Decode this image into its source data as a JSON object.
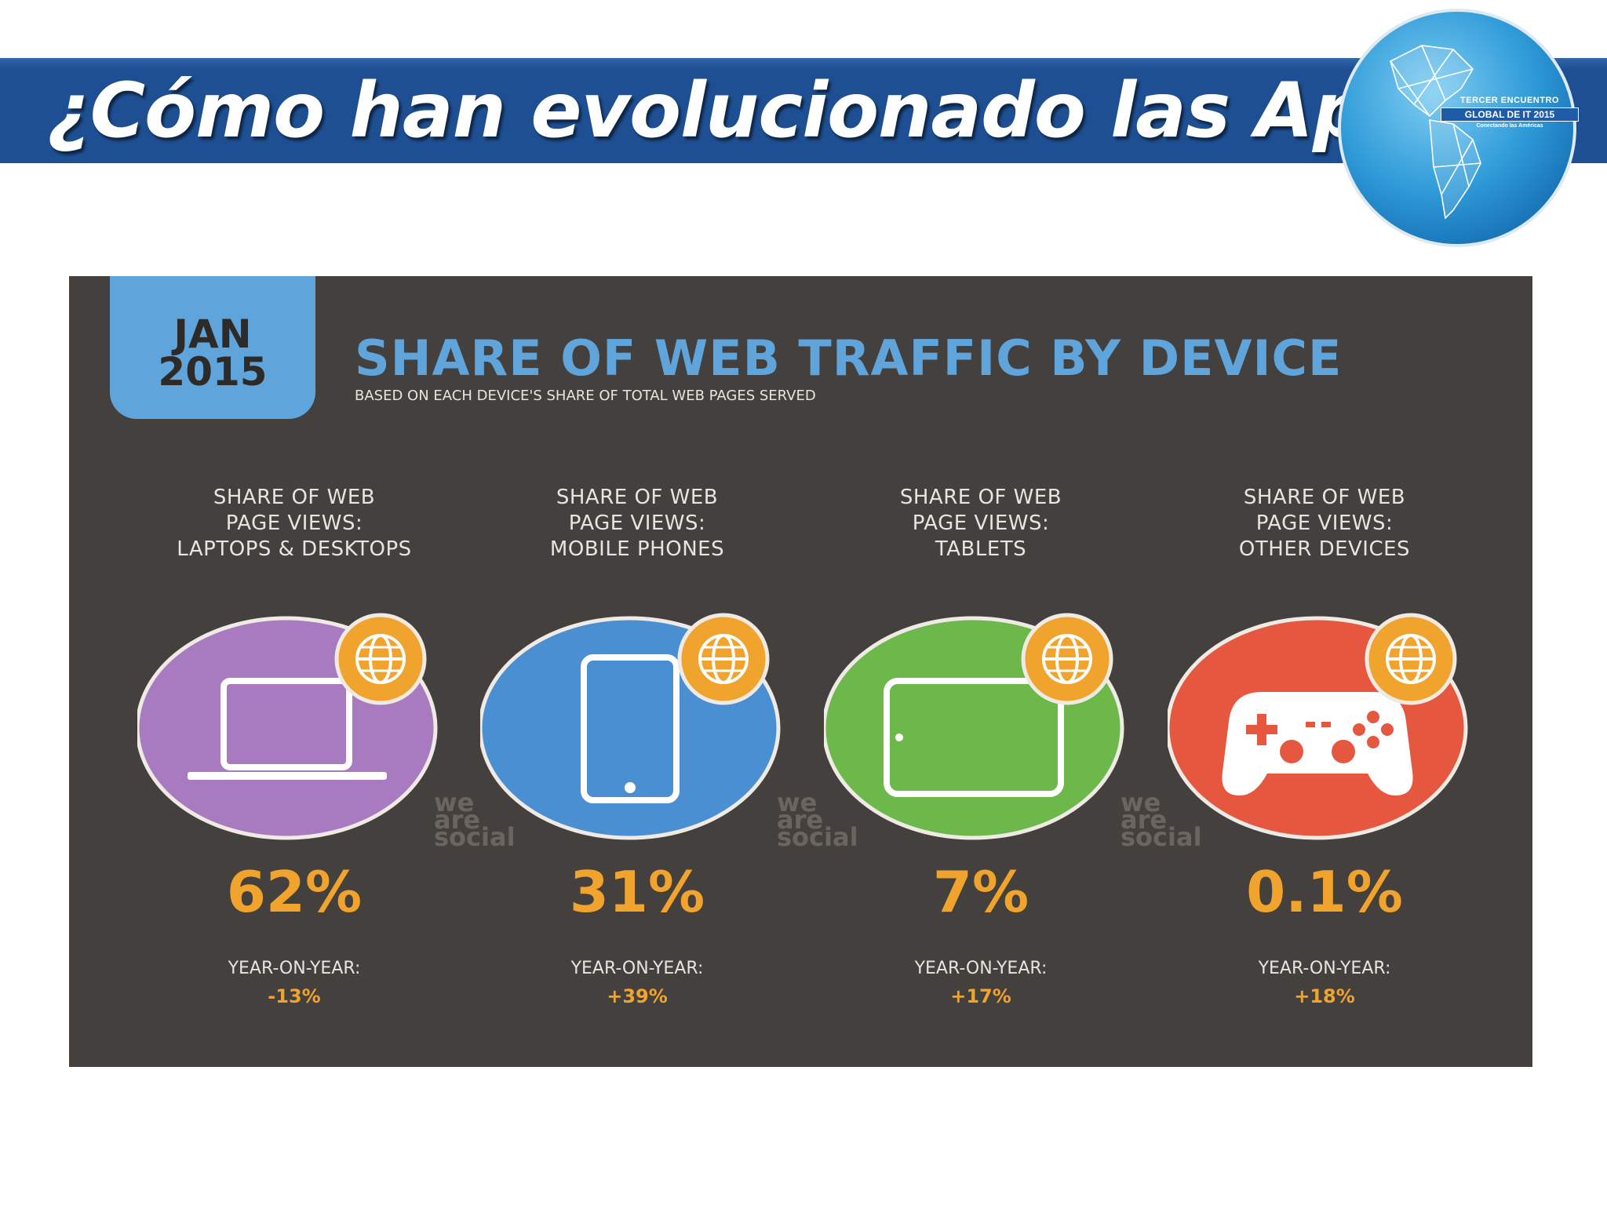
{
  "slide": {
    "title": "¿Cómo han evolucionado las Apps?"
  },
  "logo": {
    "line1": "TERCER ENCUENTRO",
    "line2": "GLOBAL DE IT 2015",
    "line3": "Conectando las Américas"
  },
  "infographic": {
    "date": {
      "month": "JAN",
      "year": "2015"
    },
    "title": "SHARE OF WEB TRAFFIC BY DEVICE",
    "subtitle": "BASED ON EACH DEVICE'S SHARE OF TOTAL WEB PAGES SERVED",
    "watermark": [
      "we",
      "are",
      "social"
    ],
    "devices": [
      {
        "label_lines": [
          "SHARE OF WEB",
          "PAGE VIEWS:",
          "LAPTOPS & DESKTOPS"
        ],
        "icon": "laptop-icon",
        "color": "#a87bc0",
        "percent": "62%",
        "yoy_label": "YEAR-ON-YEAR:",
        "yoy_value": "-13%"
      },
      {
        "label_lines": [
          "SHARE OF WEB",
          "PAGE VIEWS:",
          "MOBILE PHONES"
        ],
        "icon": "mobile-phone-icon",
        "color": "#4a8fd2",
        "percent": "31%",
        "yoy_label": "YEAR-ON-YEAR:",
        "yoy_value": "+39%"
      },
      {
        "label_lines": [
          "SHARE OF WEB",
          "PAGE VIEWS:",
          "TABLETS"
        ],
        "icon": "tablet-icon",
        "color": "#6cb84a",
        "percent": "7%",
        "yoy_label": "YEAR-ON-YEAR:",
        "yoy_value": "+17%"
      },
      {
        "label_lines": [
          "SHARE OF WEB",
          "PAGE VIEWS:",
          "OTHER DEVICES"
        ],
        "icon": "game-controller-icon",
        "color": "#e5573f",
        "percent": "0.1%",
        "yoy_label": "YEAR-ON-YEAR:",
        "yoy_value": "+18%"
      }
    ],
    "badge_icon": "globe-icon",
    "badge_color": "#f0a32d",
    "accent_color": "#5fa5dc",
    "panel_color": "#44403d"
  }
}
